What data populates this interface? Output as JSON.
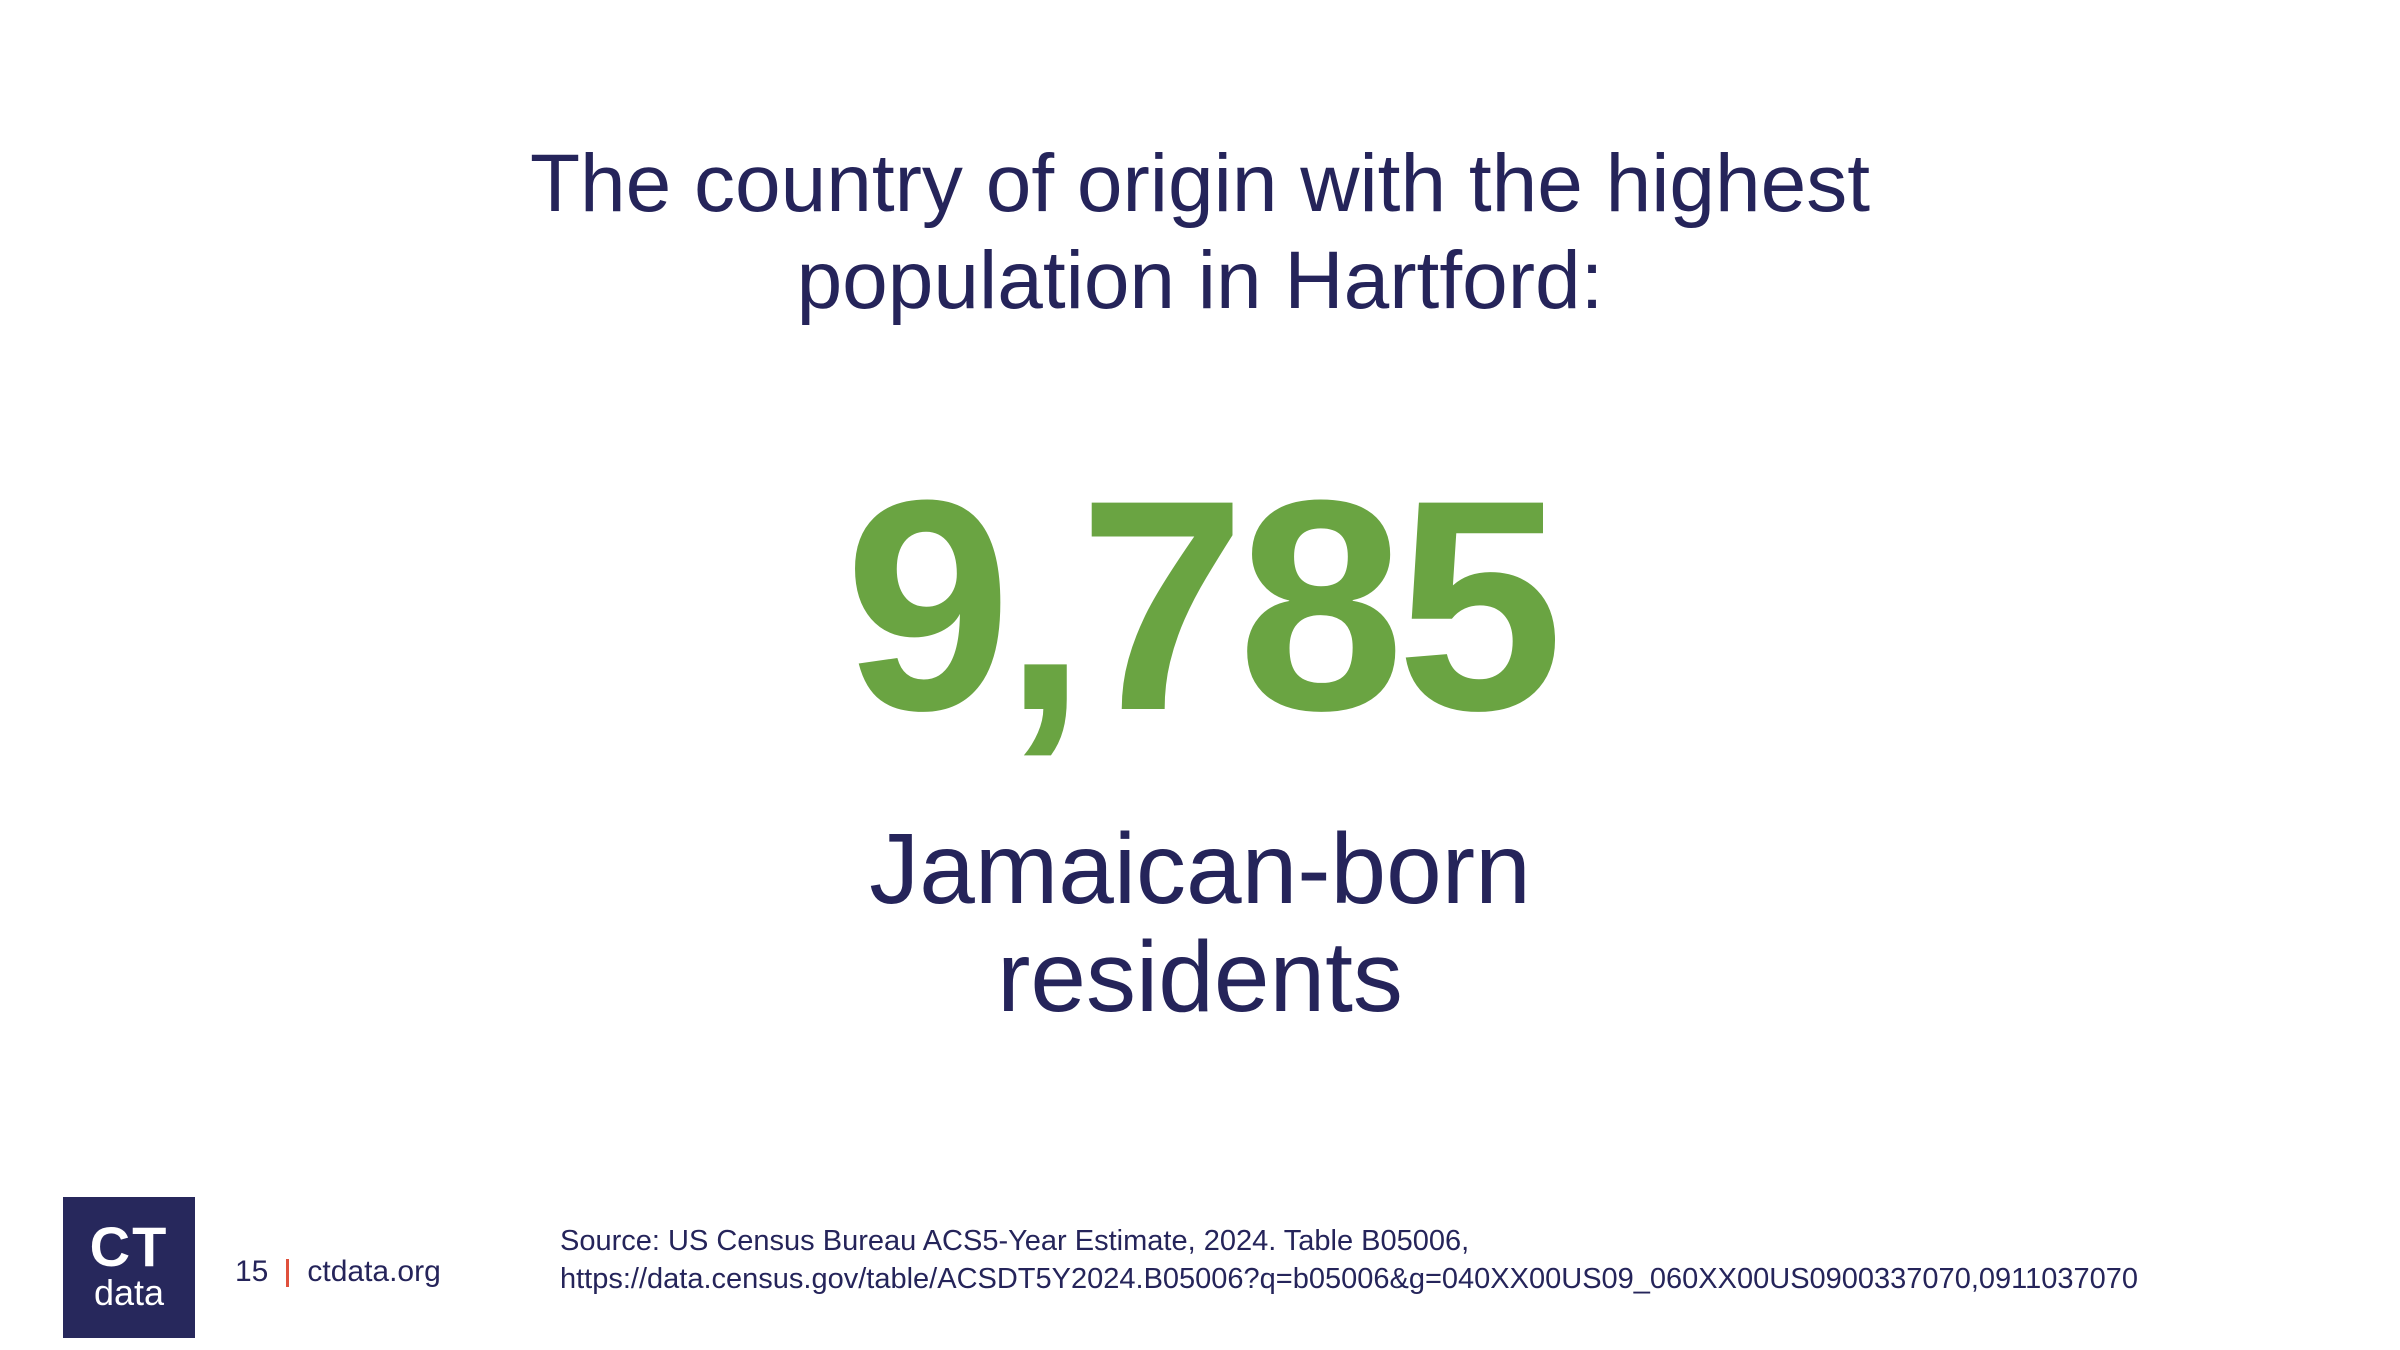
{
  "title": [
    "The country of origin with the highest",
    "population in Hartford:"
  ],
  "stat": "9,785",
  "subtitle": [
    "Jamaican-born",
    "residents"
  ],
  "footer": {
    "logo": [
      "CT",
      "data"
    ],
    "page": "15",
    "site": "ctdata.org",
    "source": [
      "Source: US Census Bureau ACS5-Year Estimate, 2024. Table B05006,",
      "https://data.census.gov/table/ACSDT5Y2024.B05006?q=b05006&g=040XX00US09_060XX00US0900337070,0911037070"
    ]
  }
}
